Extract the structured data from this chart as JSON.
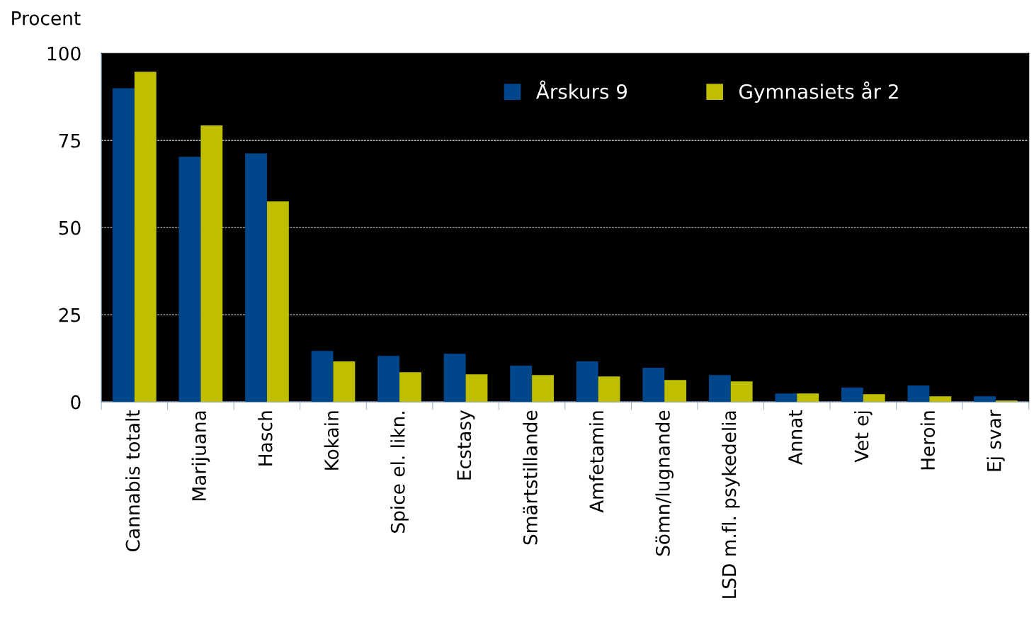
{
  "chart_data": {
    "type": "bar",
    "ylabel": "Procent",
    "categories": [
      "Cannabis totalt",
      "Marijuana",
      "Hasch",
      "Kokain",
      "Spice el. likn.",
      "Ecstasy",
      "Smärtstillande",
      "Amfetamin",
      "Sömn/lugnande",
      "LSD m.fl. psykedelia",
      "Annat",
      "Vet ej",
      "Heroin",
      "Ej svar"
    ],
    "series": [
      {
        "name": "Årskurs 9",
        "color": "#00468b",
        "values": [
          90,
          70.3,
          71.3,
          14.6,
          13.2,
          13.8,
          10.4,
          11.6,
          9.8,
          7.7,
          2.4,
          4.1,
          4.7,
          1.6
        ]
      },
      {
        "name": "Gymnasiets år 2",
        "color": "#bfbf00",
        "values": [
          94.7,
          79.3,
          57.5,
          11.6,
          8.5,
          7.9,
          7.7,
          7.3,
          6.3,
          5.9,
          2.4,
          2.2,
          1.6,
          0.4
        ]
      }
    ],
    "ylim": [
      0,
      100
    ],
    "yticks": [
      0,
      25,
      50,
      75,
      100
    ],
    "grid": "y",
    "legend": "top right"
  }
}
